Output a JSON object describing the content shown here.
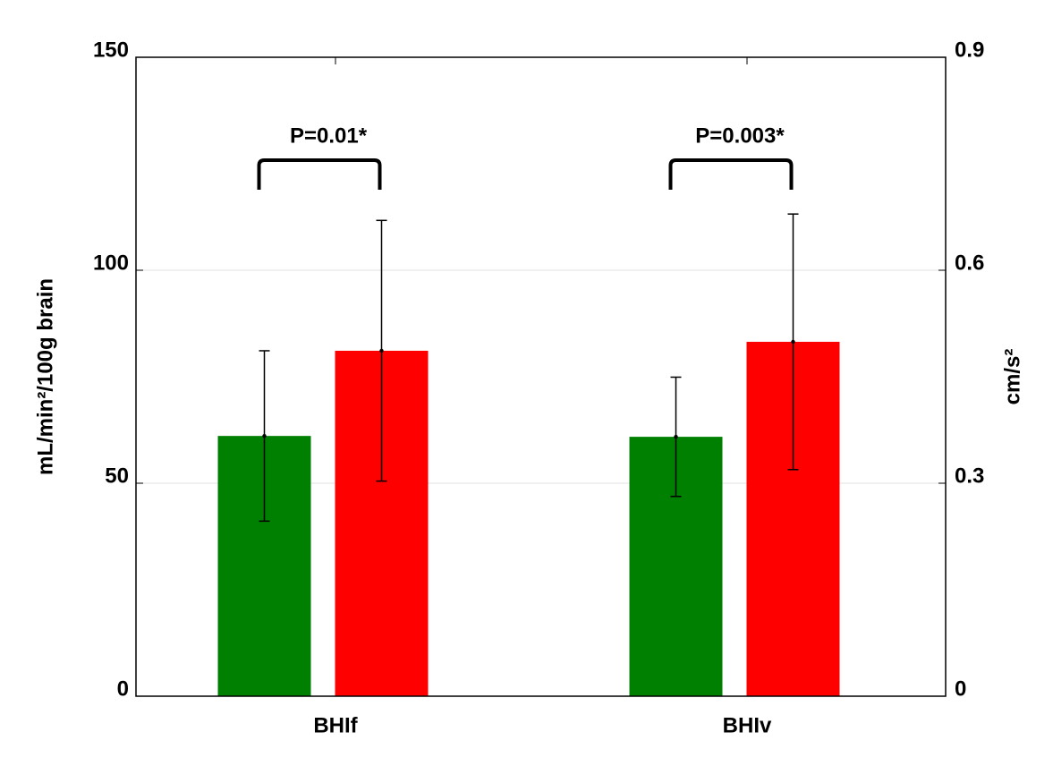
{
  "chart_data": {
    "type": "bar",
    "categories": [
      "BHIf",
      "BHIv"
    ],
    "series": [
      {
        "color": "#008000",
        "values": [
          61.1,
          60.9
        ],
        "errors": [
          20,
          14
        ]
      },
      {
        "color": "#ff0000",
        "values": [
          81.1,
          83.2
        ],
        "errors": [
          30.6,
          30
        ]
      }
    ],
    "ylabel": "mL/min²/100g  brain",
    "y2label": "cm/s²",
    "ylim": [
      0,
      150
    ],
    "yticks": [
      0,
      50,
      100,
      150
    ],
    "y2lim": [
      0,
      0.9
    ],
    "y2ticks": [
      0,
      0.3,
      0.6,
      0.9
    ],
    "grid": true,
    "annotations": [
      "P=0.01*",
      "P=0.003*"
    ]
  }
}
